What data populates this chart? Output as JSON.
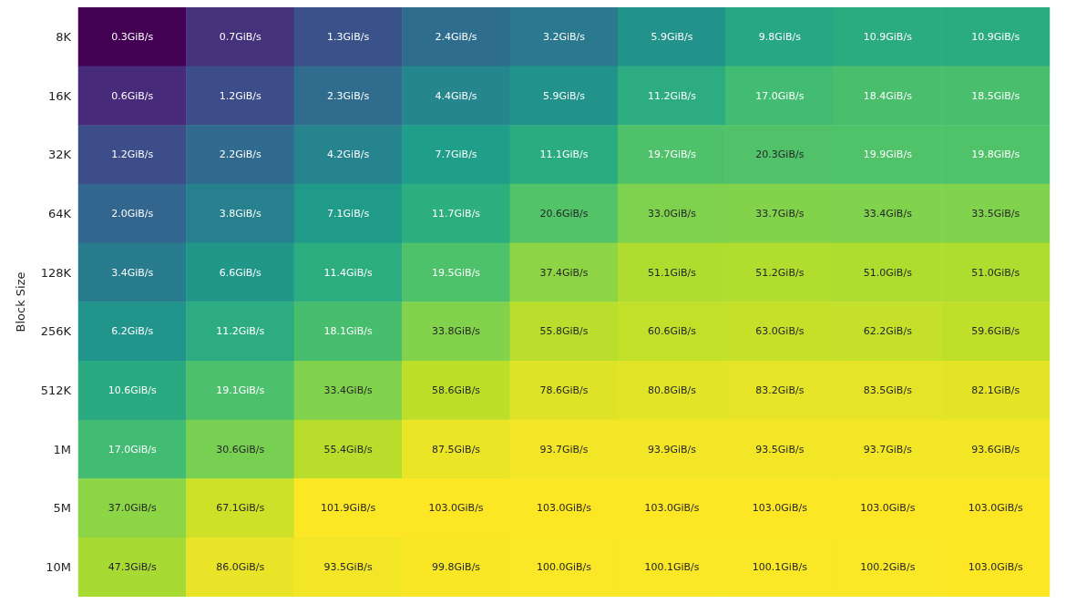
{
  "chart_data": {
    "type": "heatmap",
    "ylabel": "Block Size",
    "tick_labels": "y",
    "categories": [
      null,
      null,
      null,
      null,
      null,
      null,
      null,
      null,
      null
    ],
    "y_categories": [
      "8K",
      "16K",
      "32K",
      "64K",
      "128K",
      "256K",
      "512K",
      "1M",
      "5M",
      "10M"
    ],
    "cells": [
      [
        0.3,
        0.7,
        1.3,
        2.4,
        3.2,
        5.9,
        9.8,
        10.9,
        10.9
      ],
      [
        0.6,
        1.2,
        2.3,
        4.4,
        5.9,
        11.2,
        17.0,
        18.4,
        18.5
      ],
      [
        1.2,
        2.2,
        4.2,
        7.7,
        11.1,
        19.7,
        20.3,
        19.9,
        19.8
      ],
      [
        2.0,
        3.8,
        7.1,
        11.7,
        20.6,
        33.0,
        33.7,
        33.4,
        33.5
      ],
      [
        3.4,
        6.6,
        11.4,
        19.5,
        37.4,
        51.1,
        51.2,
        51.0,
        51.0
      ],
      [
        6.2,
        11.2,
        18.1,
        33.8,
        55.8,
        60.6,
        63.0,
        62.2,
        59.6
      ],
      [
        10.6,
        19.1,
        33.4,
        58.6,
        78.6,
        80.8,
        83.2,
        83.5,
        82.1
      ],
      [
        17.0,
        30.6,
        55.4,
        87.5,
        93.7,
        93.9,
        93.5,
        93.7,
        93.6
      ],
      [
        37.0,
        67.1,
        101.9,
        103.0,
        103.0,
        103.0,
        103.0,
        103.0,
        103.0
      ],
      [
        47.3,
        86.0,
        93.5,
        99.8,
        100.0,
        100.1,
        100.1,
        100.2,
        103.0
      ]
    ],
    "cell_labels": [
      [
        "0.3GiB/s",
        "0.7GiB/s",
        "1.3GiB/s",
        "2.4GiB/s",
        "3.2GiB/s",
        "5.9GiB/s",
        "9.8GiB/s",
        "10.9GiB/s",
        "10.9GiB/s"
      ],
      [
        "0.6GiB/s",
        "1.2GiB/s",
        "2.3GiB/s",
        "4.4GiB/s",
        "5.9GiB/s",
        "11.2GiB/s",
        "17.0GiB/s",
        "18.4GiB/s",
        "18.5GiB/s"
      ],
      [
        "1.2GiB/s",
        "2.2GiB/s",
        "4.2GiB/s",
        "7.7GiB/s",
        "11.1GiB/s",
        "19.7GiB/s",
        "20.3GiB/s",
        "19.9GiB/s",
        "19.8GiB/s"
      ],
      [
        "2.0GiB/s",
        "3.8GiB/s",
        "7.1GiB/s",
        "11.7GiB/s",
        "20.6GiB/s",
        "33.0GiB/s",
        "33.7GiB/s",
        "33.4GiB/s",
        "33.5GiB/s"
      ],
      [
        "3.4GiB/s",
        "6.6GiB/s",
        "11.4GiB/s",
        "19.5GiB/s",
        "37.4GiB/s",
        "51.1GiB/s",
        "51.2GiB/s",
        "51.0GiB/s",
        "51.0GiB/s"
      ],
      [
        "6.2GiB/s",
        "11.2GiB/s",
        "18.1GiB/s",
        "33.8GiB/s",
        "55.8GiB/s",
        "60.6GiB/s",
        "63.0GiB/s",
        "62.2GiB/s",
        "59.6GiB/s"
      ],
      [
        "10.6GiB/s",
        "19.1GiB/s",
        "33.4GiB/s",
        "58.6GiB/s",
        "78.6GiB/s",
        "80.8GiB/s",
        "83.2GiB/s",
        "83.5GiB/s",
        "82.1GiB/s"
      ],
      [
        "17.0GiB/s",
        "30.6GiB/s",
        "55.4GiB/s",
        "87.5GiB/s",
        "93.7GiB/s",
        "93.9GiB/s",
        "93.5GiB/s",
        "93.7GiB/s",
        "93.6GiB/s"
      ],
      [
        "37.0GiB/s",
        "67.1GiB/s",
        "101.9GiB/s",
        "103.0GiB/s",
        "103.0GiB/s",
        "103.0GiB/s",
        "103.0GiB/s",
        "103.0GiB/s",
        "103.0GiB/s"
      ],
      [
        "47.3GiB/s",
        "86.0GiB/s",
        "93.5GiB/s",
        "99.8GiB/s",
        "100.0GiB/s",
        "100.1GiB/s",
        "100.1GiB/s",
        "100.2GiB/s",
        "103.0GiB/s"
      ]
    ]
  }
}
